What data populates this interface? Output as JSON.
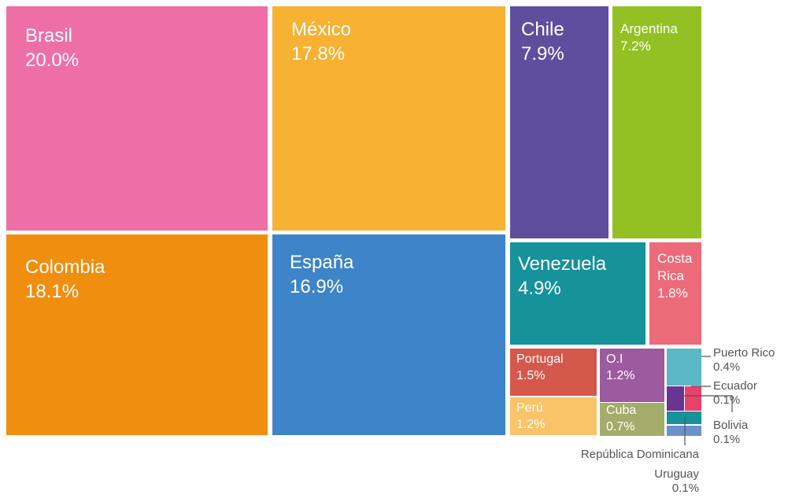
{
  "chart_data": {
    "type": "treemap",
    "categories": [
      "Brasil",
      "Colombia",
      "México",
      "España",
      "Chile",
      "Argentina",
      "Venezuela",
      "Costa Rica",
      "Portugal",
      "Perú",
      "O.I",
      "Cuba",
      "Puerto Rico",
      "Ecuador",
      "Bolivia",
      "República Dominicana",
      "Uruguay"
    ],
    "values": [
      20.0,
      18.1,
      17.8,
      16.9,
      7.9,
      7.2,
      4.9,
      1.8,
      1.5,
      1.2,
      1.2,
      0.7,
      0.4,
      0.1,
      0.1,
      0.1,
      0.1
    ],
    "value_labels": [
      "20.0%",
      "18.1%",
      "17.8%",
      "16.9%",
      "7.9%",
      "7.2%",
      "4.9%",
      "1.8%",
      "1.5%",
      "1.2%",
      "1.2%",
      "0.7%",
      "0.4%",
      "0.1%",
      "0.1%",
      null,
      "0.1%"
    ],
    "colors": [
      "#ee6fa6",
      "#f08e10",
      "#f7b133",
      "#3e84c8",
      "#5e4f9e",
      "#93c124",
      "#15929a",
      "#ec6a7a",
      "#d4584b",
      "#f9c467",
      "#9e5a9e",
      "#a3ac6a",
      "#5ab9c4",
      "#e8416a",
      "#6a3491",
      "#15929a",
      "#6c92cc"
    ]
  }
}
